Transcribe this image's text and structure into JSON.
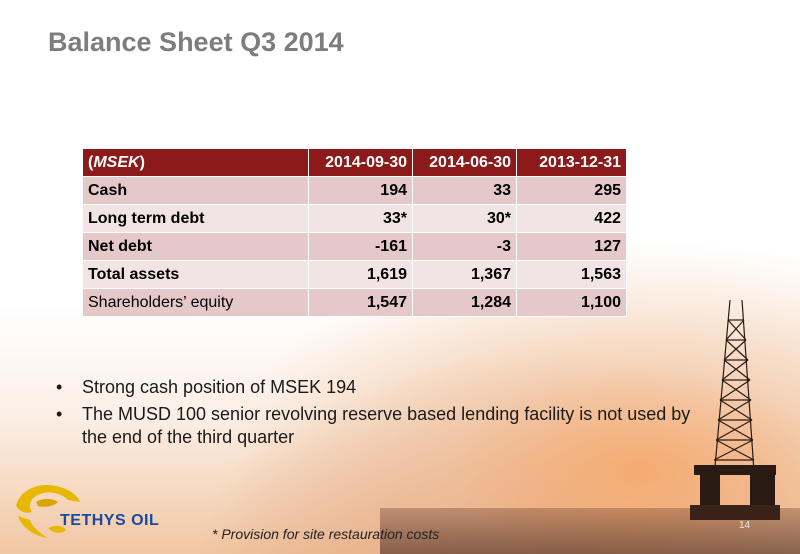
{
  "slide": {
    "title": "Balance Sheet Q3 2014",
    "page_number": "14",
    "footnote": "* Provision for site restauration costs"
  },
  "table": {
    "header_prefix": "(",
    "header_unit": "MSEK",
    "header_suffix": ")",
    "columns": [
      "2014-09-30",
      "2014-06-30",
      "2013-12-31"
    ],
    "rows": [
      {
        "label": "Cash",
        "values": [
          "194",
          "33",
          "295"
        ]
      },
      {
        "label": "Long term debt",
        "values": [
          "33*",
          "30*",
          "422"
        ]
      },
      {
        "label": "Net debt",
        "values": [
          "-161",
          "-3",
          "127"
        ]
      },
      {
        "label": "Total assets",
        "values": [
          "1,619",
          "1,367",
          "1,563"
        ]
      },
      {
        "label": "Shareholders’ equity",
        "values": [
          "1,547",
          "1,284",
          "1,100"
        ]
      }
    ],
    "header_color": "#8c1a1a"
  },
  "bullets": [
    "Strong cash position of MSEK 194",
    "The MUSD 100 senior revolving reserve based lending facility is not used by the end of the third quarter"
  ],
  "bullet_symbol": "•",
  "logo": {
    "text": "TETHYS OIL",
    "icon": "tethys-oil-logo-icon"
  },
  "background": {
    "icon": "drilling-rig-icon",
    "accent": "#f3a56b"
  }
}
